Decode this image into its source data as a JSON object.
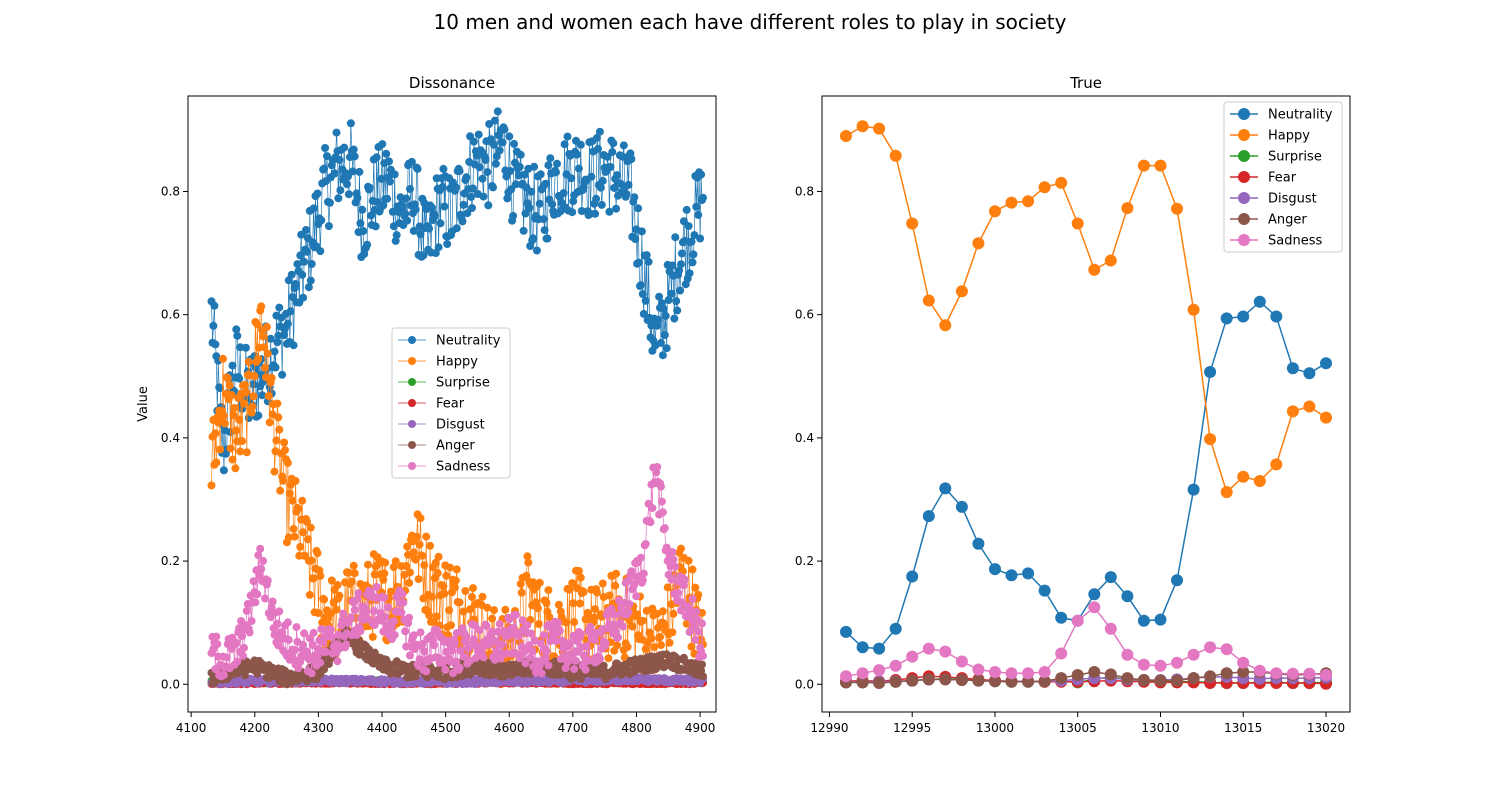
{
  "figure_title": "10 men and women each have different roles to play in society",
  "colors": {
    "Neutrality": "#1f77b4",
    "Happy": "#ff7f0e",
    "Surprise": "#2ca02c",
    "Fear": "#d62728",
    "Disgust": "#9467bd",
    "Anger": "#8c564b",
    "Sadness": "#e377c2"
  },
  "chart_data": [
    {
      "type": "line",
      "title": "Dissonance",
      "xlabel": "",
      "ylabel": "Value",
      "xlim": [
        4095,
        4925
      ],
      "ylim": [
        -0.045,
        0.955
      ],
      "xticks": [
        4100,
        4200,
        4300,
        4400,
        4500,
        4600,
        4700,
        4800,
        4900
      ],
      "yticks": [
        0.0,
        0.2,
        0.4,
        0.6,
        0.8
      ],
      "ytick_labels": [
        "0.0",
        "0.2",
        "0.4",
        "0.6",
        "0.8"
      ],
      "legend": "center",
      "x_range": [
        4132,
        4905
      ],
      "series": [
        {
          "name": "Neutrality",
          "x": [
            4132,
            4150,
            4170,
            4190,
            4210,
            4230,
            4250,
            4270,
            4290,
            4310,
            4330,
            4350,
            4370,
            4390,
            4410,
            4430,
            4450,
            4470,
            4490,
            4510,
            4530,
            4550,
            4570,
            4590,
            4610,
            4630,
            4650,
            4670,
            4690,
            4710,
            4730,
            4750,
            4770,
            4790,
            4810,
            4830,
            4850,
            4870,
            4890,
            4905
          ],
          "y": [
            0.6,
            0.38,
            0.52,
            0.47,
            0.5,
            0.55,
            0.58,
            0.65,
            0.72,
            0.8,
            0.84,
            0.85,
            0.75,
            0.8,
            0.82,
            0.76,
            0.8,
            0.7,
            0.78,
            0.76,
            0.82,
            0.85,
            0.84,
            0.88,
            0.8,
            0.78,
            0.76,
            0.82,
            0.83,
            0.84,
            0.82,
            0.84,
            0.82,
            0.8,
            0.68,
            0.55,
            0.62,
            0.7,
            0.75,
            0.8
          ]
        },
        {
          "name": "Happy",
          "x": [
            4132,
            4150,
            4170,
            4190,
            4210,
            4230,
            4250,
            4270,
            4290,
            4310,
            4330,
            4350,
            4370,
            4390,
            4410,
            4430,
            4450,
            4470,
            4490,
            4510,
            4530,
            4550,
            4570,
            4590,
            4610,
            4630,
            4650,
            4670,
            4690,
            4710,
            4730,
            4750,
            4770,
            4790,
            4810,
            4830,
            4850,
            4870,
            4890,
            4905
          ],
          "y": [
            0.35,
            0.48,
            0.4,
            0.45,
            0.6,
            0.42,
            0.3,
            0.25,
            0.18,
            0.12,
            0.1,
            0.13,
            0.12,
            0.15,
            0.14,
            0.16,
            0.24,
            0.18,
            0.15,
            0.14,
            0.12,
            0.1,
            0.06,
            0.05,
            0.07,
            0.15,
            0.1,
            0.09,
            0.1,
            0.12,
            0.09,
            0.1,
            0.12,
            0.1,
            0.08,
            0.06,
            0.1,
            0.18,
            0.12,
            0.05
          ]
        },
        {
          "name": "Surprise",
          "x": [
            4132,
            4200,
            4300,
            4400,
            4500,
            4600,
            4700,
            4800,
            4905
          ],
          "y": [
            0.005,
            0.003,
            0.004,
            0.005,
            0.004,
            0.006,
            0.005,
            0.004,
            0.004
          ]
        },
        {
          "name": "Fear",
          "x": [
            4132,
            4200,
            4300,
            4400,
            4500,
            4600,
            4700,
            4800,
            4905
          ],
          "y": [
            0.002,
            0.002,
            0.003,
            0.002,
            0.002,
            0.003,
            0.002,
            0.002,
            0.002
          ]
        },
        {
          "name": "Disgust",
          "x": [
            4132,
            4200,
            4300,
            4400,
            4500,
            4600,
            4700,
            4800,
            4905
          ],
          "y": [
            0.004,
            0.005,
            0.006,
            0.005,
            0.004,
            0.005,
            0.006,
            0.008,
            0.005
          ]
        },
        {
          "name": "Anger",
          "x": [
            4132,
            4160,
            4200,
            4250,
            4300,
            4340,
            4400,
            4450,
            4500,
            4550,
            4600,
            4650,
            4700,
            4750,
            4800,
            4850,
            4905
          ],
          "y": [
            0.01,
            0.02,
            0.03,
            0.01,
            0.02,
            0.08,
            0.03,
            0.02,
            0.02,
            0.03,
            0.02,
            0.03,
            0.02,
            0.02,
            0.03,
            0.04,
            0.02
          ]
        },
        {
          "name": "Sadness",
          "x": [
            4132,
            4150,
            4170,
            4190,
            4210,
            4230,
            4250,
            4270,
            4290,
            4310,
            4330,
            4350,
            4370,
            4390,
            4410,
            4430,
            4450,
            4470,
            4490,
            4510,
            4530,
            4550,
            4570,
            4590,
            4610,
            4630,
            4650,
            4670,
            4690,
            4710,
            4730,
            4750,
            4770,
            4790,
            4810,
            4830,
            4850,
            4870,
            4890,
            4905
          ],
          "y": [
            0.05,
            0.04,
            0.05,
            0.1,
            0.2,
            0.1,
            0.07,
            0.06,
            0.05,
            0.06,
            0.07,
            0.1,
            0.12,
            0.13,
            0.1,
            0.12,
            0.06,
            0.05,
            0.06,
            0.05,
            0.06,
            0.07,
            0.06,
            0.07,
            0.08,
            0.06,
            0.05,
            0.07,
            0.06,
            0.05,
            0.06,
            0.08,
            0.1,
            0.15,
            0.2,
            0.35,
            0.2,
            0.15,
            0.1,
            0.06
          ]
        }
      ]
    },
    {
      "type": "line",
      "title": "True",
      "xlabel": "",
      "ylabel": "",
      "xlim": [
        12989.55,
        13021.45
      ],
      "ylim": [
        -0.045,
        0.955
      ],
      "xticks": [
        12990,
        12995,
        13000,
        13005,
        13010,
        13015,
        13020
      ],
      "yticks": [
        0.0,
        0.2,
        0.4,
        0.6,
        0.8
      ],
      "ytick_labels": [
        "0.0",
        "0.2",
        "0.4",
        "0.6",
        "0.8"
      ],
      "legend": "top-right",
      "x": [
        12991,
        12992,
        12993,
        12994,
        12995,
        12996,
        12997,
        12998,
        12999,
        13000,
        13001,
        13002,
        13003,
        13004,
        13005,
        13006,
        13007,
        13008,
        13009,
        13010,
        13011,
        13012,
        13013,
        13014,
        13015,
        13016,
        13017,
        13018,
        13019,
        13020
      ],
      "series": [
        {
          "name": "Neutrality",
          "values": [
            0.085,
            0.06,
            0.058,
            0.09,
            0.175,
            0.273,
            0.318,
            0.288,
            0.228,
            0.187,
            0.177,
            0.18,
            0.152,
            0.108,
            0.103,
            0.146,
            0.174,
            0.143,
            0.103,
            0.105,
            0.169,
            0.316,
            0.507,
            0.594,
            0.597,
            0.621,
            0.597,
            0.513,
            0.505,
            0.521
          ]
        },
        {
          "name": "Happy",
          "values": [
            0.89,
            0.906,
            0.902,
            0.858,
            0.748,
            0.623,
            0.583,
            0.638,
            0.716,
            0.768,
            0.782,
            0.784,
            0.807,
            0.814,
            0.748,
            0.673,
            0.688,
            0.773,
            0.842,
            0.842,
            0.772,
            0.608,
            0.398,
            0.312,
            0.337,
            0.33,
            0.357,
            0.443,
            0.451,
            0.433
          ]
        },
        {
          "name": "Surprise",
          "values": [
            0.003,
            0.003,
            0.004,
            0.004,
            0.006,
            0.008,
            0.009,
            0.008,
            0.006,
            0.005,
            0.004,
            0.004,
            0.004,
            0.005,
            0.003,
            0.008,
            0.012,
            0.008,
            0.006,
            0.004,
            0.004,
            0.004,
            0.003,
            0.002,
            0.002,
            0.003,
            0.003,
            0.002,
            0.002,
            0.003
          ]
        },
        {
          "name": "Fear",
          "values": [
            0.005,
            0.006,
            0.005,
            0.007,
            0.01,
            0.013,
            0.012,
            0.01,
            0.008,
            0.006,
            0.005,
            0.005,
            0.004,
            0.004,
            0.004,
            0.005,
            0.006,
            0.005,
            0.004,
            0.003,
            0.003,
            0.003,
            0.002,
            0.002,
            0.002,
            0.002,
            0.002,
            0.002,
            0.002,
            0.001
          ]
        },
        {
          "name": "Disgust",
          "values": [
            0.004,
            0.004,
            0.004,
            0.005,
            0.006,
            0.008,
            0.008,
            0.007,
            0.006,
            0.005,
            0.005,
            0.005,
            0.005,
            0.006,
            0.008,
            0.01,
            0.01,
            0.008,
            0.007,
            0.007,
            0.008,
            0.01,
            0.012,
            0.012,
            0.01,
            0.009,
            0.01,
            0.01,
            0.01,
            0.011
          ]
        },
        {
          "name": "Anger",
          "values": [
            0.003,
            0.003,
            0.002,
            0.004,
            0.006,
            0.008,
            0.008,
            0.007,
            0.006,
            0.005,
            0.004,
            0.004,
            0.005,
            0.01,
            0.015,
            0.02,
            0.016,
            0.01,
            0.007,
            0.006,
            0.006,
            0.01,
            0.013,
            0.018,
            0.02,
            0.02,
            0.017,
            0.015,
            0.016,
            0.018
          ]
        },
        {
          "name": "Sadness",
          "values": [
            0.013,
            0.018,
            0.023,
            0.03,
            0.045,
            0.058,
            0.053,
            0.037,
            0.024,
            0.02,
            0.018,
            0.018,
            0.02,
            0.05,
            0.103,
            0.125,
            0.09,
            0.048,
            0.032,
            0.03,
            0.035,
            0.048,
            0.06,
            0.057,
            0.035,
            0.022,
            0.018,
            0.017,
            0.017,
            0.015
          ]
        }
      ]
    }
  ]
}
